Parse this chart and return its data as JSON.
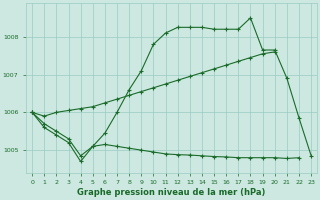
{
  "title": "Graphe pression niveau de la mer (hPa)",
  "bg_color": "#cce8e0",
  "grid_color": "#99ccc4",
  "line_color": "#1a6b2a",
  "x_ticks": [
    0,
    1,
    2,
    3,
    4,
    5,
    6,
    7,
    8,
    9,
    10,
    11,
    12,
    13,
    14,
    15,
    16,
    17,
    18,
    19,
    20,
    21,
    22,
    23
  ],
  "y_min": 1004.4,
  "y_max": 1008.9,
  "y_ticks": [
    1005,
    1006,
    1007,
    1008
  ],
  "curve_main": [
    1006.0,
    1005.7,
    1005.5,
    1005.3,
    1004.85,
    1005.1,
    1005.45,
    1006.0,
    1006.6,
    1007.1,
    1007.8,
    1008.1,
    1008.25,
    1008.25,
    1008.25,
    1008.2,
    1008.2,
    1008.2,
    1008.5,
    1007.65,
    1007.65,
    1006.9,
    1005.85,
    1004.85
  ],
  "curve_diag": [
    1006.0,
    1005.9,
    1006.0,
    1006.05,
    1006.1,
    1006.15,
    1006.25,
    1006.35,
    1006.45,
    1006.55,
    1006.65,
    1006.75,
    1006.85,
    1006.95,
    1007.05,
    1007.15,
    1007.25,
    1007.35,
    1007.45,
    1007.55,
    1007.6,
    null,
    null,
    null
  ],
  "curve_low": [
    1006.0,
    1005.6,
    1005.4,
    1005.2,
    1004.7,
    1005.1,
    1005.15,
    1005.1,
    1005.05,
    1005.0,
    1004.95,
    1004.9,
    1004.88,
    1004.87,
    1004.85,
    1004.83,
    1004.82,
    1004.8,
    1004.8,
    1004.8,
    1004.8,
    1004.78,
    1004.8,
    null
  ]
}
